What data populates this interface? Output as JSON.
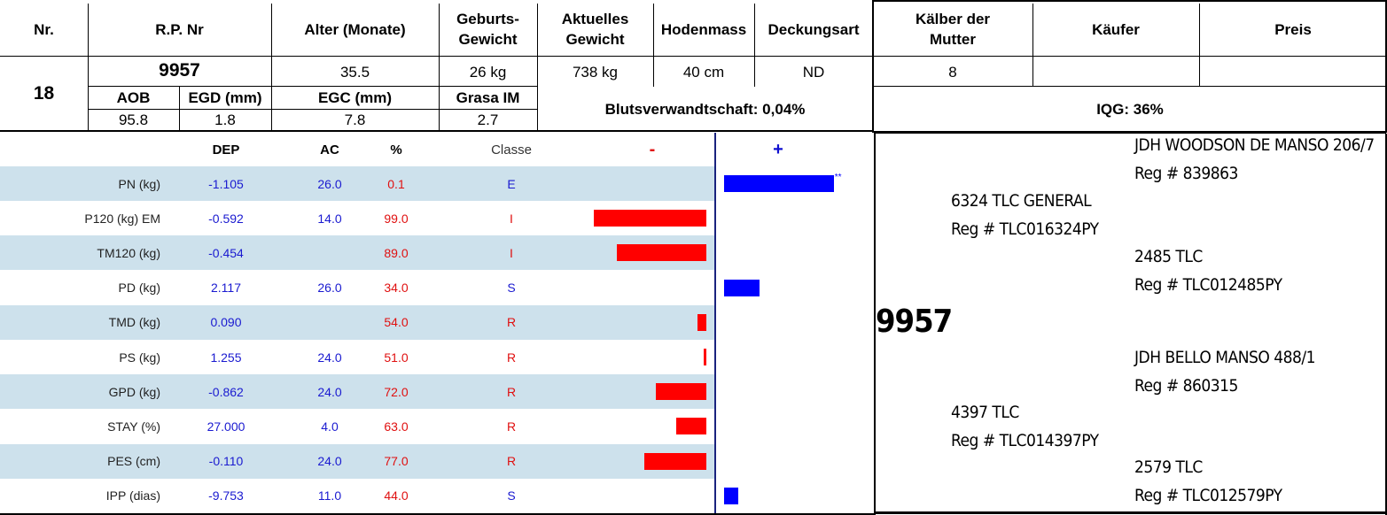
{
  "header": {
    "nr": "Nr.",
    "rp_nr": "R.P. Nr",
    "alter": "Alter (Monate)",
    "geburts": "Geburts-\nGewicht",
    "aktuelles": "Aktuelles\nGewicht",
    "hodenmass": "Hodenmass",
    "deckungsart": "Deckungsart",
    "kaelber": "Kälber der\nMutter",
    "kaeufer": "Käufer",
    "preis": "Preis"
  },
  "animal": {
    "nr": "18",
    "rp_nr": "9957",
    "alter": "35.5",
    "geburts": "26 kg",
    "aktuelles": "738 kg",
    "hodenmass": "40 cm",
    "deckungsart": "ND",
    "kaelber": "8",
    "kaeufer": "",
    "preis": ""
  },
  "sub": {
    "aob_label": "AOB",
    "egd_label": "EGD (mm)",
    "egc_label": "EGC (mm)",
    "grasa_label": "Grasa IM",
    "aob": "95.8",
    "egd": "1.8",
    "egc": "7.8",
    "grasa": "2.7",
    "blut": "Blutsverwandtschaft: 0,04%",
    "iqg": "IQG: 36%"
  },
  "traits_header": {
    "dep": "DEP",
    "ac": "AC",
    "pct": "%",
    "classe": "Classe",
    "minus": "-",
    "plus": "+"
  },
  "colors": {
    "negative": "#ff0000",
    "positive": "#0000ff",
    "shade": "#cde1ec"
  },
  "chart_data": {
    "type": "bar",
    "rows": [
      {
        "label": "PN (kg)",
        "dep": "-1.105",
        "ac": "26.0",
        "pct": "0.1",
        "classe": "E",
        "side": "+",
        "value": 0.99,
        "mark": "**"
      },
      {
        "label": "P120 (kg) EM",
        "dep": "-0.592",
        "ac": "14.0",
        "pct": "99.0",
        "classe": "I",
        "side": "-",
        "value": 0.98,
        "mark": ""
      },
      {
        "label": "TM120 (kg)",
        "dep": "-0.454",
        "ac": "",
        "pct": "89.0",
        "classe": "I",
        "side": "-",
        "value": 0.78,
        "mark": ""
      },
      {
        "label": "PD (kg)",
        "dep": "2.117",
        "ac": "26.0",
        "pct": "34.0",
        "classe": "S",
        "side": "+",
        "value": 0.32,
        "mark": ""
      },
      {
        "label": "TMD (kg)",
        "dep": "0.090",
        "ac": "",
        "pct": "54.0",
        "classe": "R",
        "side": "-",
        "value": 0.08,
        "mark": ""
      },
      {
        "label": "PS (kg)",
        "dep": "1.255",
        "ac": "24.0",
        "pct": "51.0",
        "classe": "R",
        "side": "-",
        "value": 0.02,
        "mark": ""
      },
      {
        "label": "GPD (kg)",
        "dep": "-0.862",
        "ac": "24.0",
        "pct": "72.0",
        "classe": "R",
        "side": "-",
        "value": 0.44,
        "mark": ""
      },
      {
        "label": "STAY (%)",
        "dep": "27.000",
        "ac": "4.0",
        "pct": "63.0",
        "classe": "R",
        "side": "-",
        "value": 0.26,
        "mark": ""
      },
      {
        "label": "PES (cm)",
        "dep": "-0.110",
        "ac": "24.0",
        "pct": "77.0",
        "classe": "R",
        "side": "-",
        "value": 0.54,
        "mark": ""
      },
      {
        "label": "IPP (dias)",
        "dep": "-9.753",
        "ac": "11.0",
        "pct": "44.0",
        "classe": "S",
        "side": "+",
        "value": 0.13,
        "mark": ""
      }
    ]
  },
  "pedigree": {
    "animal": "9957",
    "sire": {
      "name": "6324 TLC GENERAL",
      "reg": "Reg # TLC016324PY"
    },
    "sire_sire": {
      "name": "JDH WOODSON DE MANSO 206/7",
      "reg": "Reg # 839863"
    },
    "sire_dam": {
      "name": "2485 TLC",
      "reg": "Reg # TLC012485PY"
    },
    "dam": {
      "name": "4397 TLC",
      "reg": "Reg # TLC014397PY"
    },
    "dam_sire": {
      "name": "JDH BELLO MANSO 488/1",
      "reg": "Reg # 860315"
    },
    "dam_dam": {
      "name": "2579 TLC",
      "reg": "Reg # TLC012579PY"
    }
  }
}
